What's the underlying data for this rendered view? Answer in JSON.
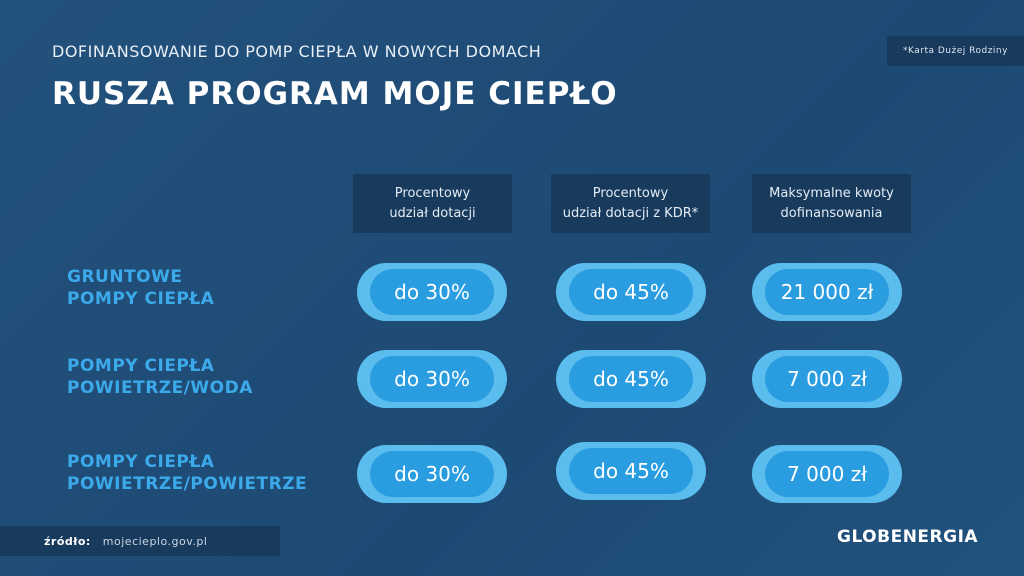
{
  "header": {
    "subtitle": "DOFINANSOWANIE DO POMP CIEPŁA W NOWYCH DOMACH",
    "title": "RUSZA PROGRAM MOJE CIEPŁO",
    "note": "*Karta Dużej Rodziny"
  },
  "columns": [
    "Procentowy\nudział dotacji",
    "Procentowy\nudział dotacji z KDR*",
    "Maksymalne kwoty\ndofinansowania"
  ],
  "rows": [
    {
      "label": "GRUNTOWE\nPOMPY CIEPŁA",
      "values": [
        "do 30%",
        "do 45%",
        "21 000 zł"
      ]
    },
    {
      "label": "POMPY CIEPŁA\nPOWIETRZE/WODA",
      "values": [
        "do 30%",
        "do 45%",
        "7 000 zł"
      ]
    },
    {
      "label": "POMPY CIEPŁA\nPOWIETRZE/POWIETRZE",
      "values": [
        "do 30%",
        "do 45%",
        "7 000 zł"
      ]
    }
  ],
  "footer": {
    "source_label": "źródło:",
    "source_value": "mojecieplo.gov.pl",
    "logo": "GLOBENERGIA"
  },
  "colors": {
    "background": "#1f4e78",
    "header_box": "#173a5d",
    "pill_outer": "#5bbcee",
    "pill_inner": "#2a9de0",
    "row_label": "#3ca9ea"
  }
}
